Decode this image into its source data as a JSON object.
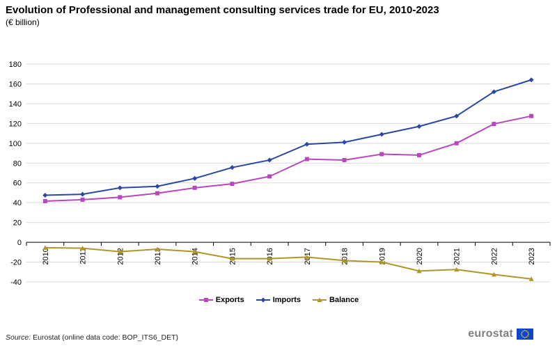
{
  "header": {
    "title": "Evolution of Professional and management consulting services trade for EU, 2010-2023",
    "subtitle": "(€ billion)"
  },
  "footer": {
    "source_label": "Source:",
    "source_text": "Eurostat (online data code: BOP_ITS6_DET)",
    "logo_text": "eurostat"
  },
  "colors": {
    "exports": "#b847be",
    "imports": "#2b47a4",
    "balance": "#b09527",
    "grid": "#d9d9d9",
    "eu_flag": "#0e47cb",
    "eu_stars": "#ffd617"
  },
  "chart_data": {
    "type": "line",
    "title": "Evolution of Professional and management consulting services trade for EU, 2010-2023",
    "subtitle": "(€ billion)",
    "xlabel": "",
    "ylabel": "",
    "ylim": [
      -40,
      180
    ],
    "ytick_step": 20,
    "grid": true,
    "legend_position": "bottom-center",
    "categories": [
      "2010",
      "2011",
      "2012",
      "2013",
      "2014",
      "2015",
      "2016",
      "2017",
      "2018",
      "2019",
      "2020",
      "2021",
      "2022",
      "2023"
    ],
    "series": [
      {
        "name": "Exports",
        "marker": "square",
        "values": [
          41.5,
          43,
          45.5,
          49.5,
          55,
          59,
          66.5,
          84,
          83,
          89,
          88,
          100,
          119.5,
          127.5
        ]
      },
      {
        "name": "Imports",
        "marker": "diamond",
        "values": [
          47.5,
          48.5,
          55,
          56.5,
          64.5,
          75.5,
          83,
          99,
          101,
          109,
          117,
          127.5,
          152,
          164
        ]
      },
      {
        "name": "Balance",
        "marker": "triangle",
        "values": [
          -5.5,
          -6,
          -9.5,
          -7,
          -9.5,
          -16.5,
          -16.5,
          -15,
          -18.5,
          -20,
          -29,
          -27.5,
          -32.5,
          -37
        ]
      }
    ]
  }
}
